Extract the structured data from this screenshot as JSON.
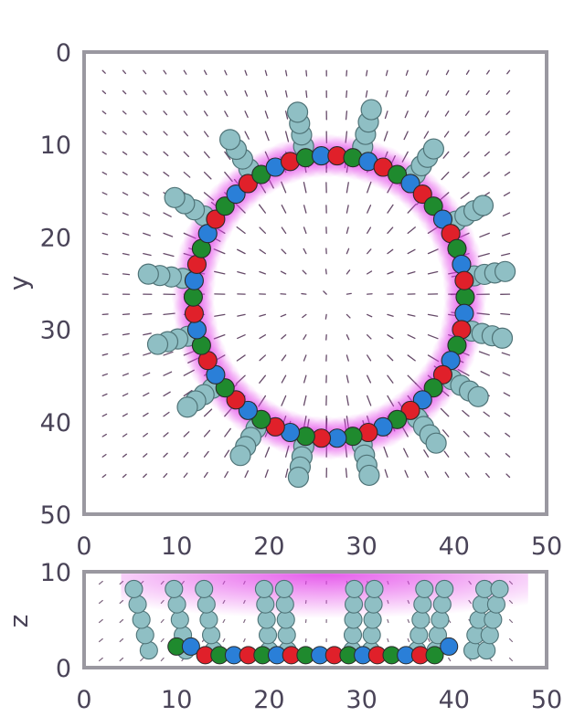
{
  "chart_data": [
    {
      "type": "scatter",
      "panel": "top view",
      "xlabel": "",
      "ylabel": "y",
      "xlim": [
        0,
        50
      ],
      "ylim": [
        0,
        50
      ],
      "y_inverted": true,
      "xticks": [
        "0",
        "10",
        "20",
        "30",
        "40",
        "50"
      ],
      "yticks": [
        "0",
        "10",
        "20",
        "30",
        "40",
        "50"
      ],
      "grid": false,
      "ring": {
        "center_x": 26.5,
        "center_y": 26.5,
        "radius_x": 14.7,
        "radius_y": 15.3
      },
      "bead_colors": [
        "#1f8a2e",
        "#2a7fd8",
        "#e0202a"
      ],
      "tail_color": "#8fbfc4",
      "halo_color": "#e23ee8",
      "arrow_color": "#4b2a4e",
      "tails": [
        {
          "angle_deg": 283,
          "length": 5.5
        },
        {
          "angle_deg": 260,
          "length": 5.0
        },
        {
          "angle_deg": 237,
          "length": 5.0
        },
        {
          "angle_deg": 212,
          "length": 5.0
        },
        {
          "angle_deg": 187,
          "length": 5.0
        },
        {
          "angle_deg": 165,
          "length": 4.5
        },
        {
          "angle_deg": 143,
          "length": 4.5
        },
        {
          "angle_deg": 120,
          "length": 4.5
        },
        {
          "angle_deg": 100,
          "length": 4.5
        },
        {
          "angle_deg": 77,
          "length": 4.5
        },
        {
          "angle_deg": 53,
          "length": 4.5
        },
        {
          "angle_deg": 33,
          "length": 4.5
        },
        {
          "angle_deg": 13,
          "length": 4.5
        },
        {
          "angle_deg": 352,
          "length": 4.5
        },
        {
          "angle_deg": 330,
          "length": 4.5
        },
        {
          "angle_deg": 306,
          "length": 4.5
        }
      ]
    },
    {
      "type": "scatter",
      "panel": "side view",
      "xlabel": "",
      "ylabel": "z",
      "xlim": [
        0,
        50
      ],
      "ylim": [
        0,
        10
      ],
      "xticks": [
        "0",
        "10",
        "20",
        "30",
        "40",
        "50"
      ],
      "yticks": [
        "0",
        "10"
      ],
      "grid": false,
      "bead_colors": [
        "#1f8a2e",
        "#2a7fd8",
        "#e0202a"
      ],
      "tail_color": "#8fbfc4",
      "halo_color": "#e23ee8",
      "arrow_color": "#4b2a4e"
    }
  ]
}
